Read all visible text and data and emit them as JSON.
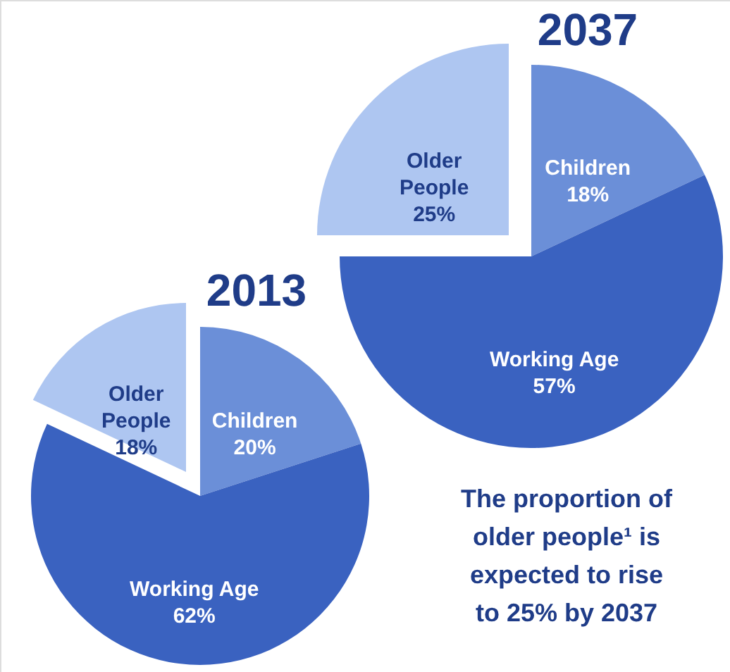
{
  "chart_data": [
    {
      "type": "pie",
      "title": "2013",
      "categories": [
        "Children",
        "Working Age",
        "Older People"
      ],
      "values": [
        20,
        62,
        18
      ],
      "colors": [
        "#6b8fd8",
        "#3a62c0",
        "#aec6f1"
      ],
      "value_labels": [
        "20%",
        "62%",
        "18%"
      ]
    },
    {
      "type": "pie",
      "title": "2037",
      "categories": [
        "Children",
        "Working Age",
        "Older People"
      ],
      "values": [
        18,
        57,
        25
      ],
      "colors": [
        "#6b8fd8",
        "#3a62c0",
        "#aec6f1"
      ],
      "value_labels": [
        "18%",
        "57%",
        "25%"
      ],
      "annotations": [
        "The proportion of\nolder people¹ is\nexpected to rise\nto 25% by 2037"
      ]
    }
  ]
}
